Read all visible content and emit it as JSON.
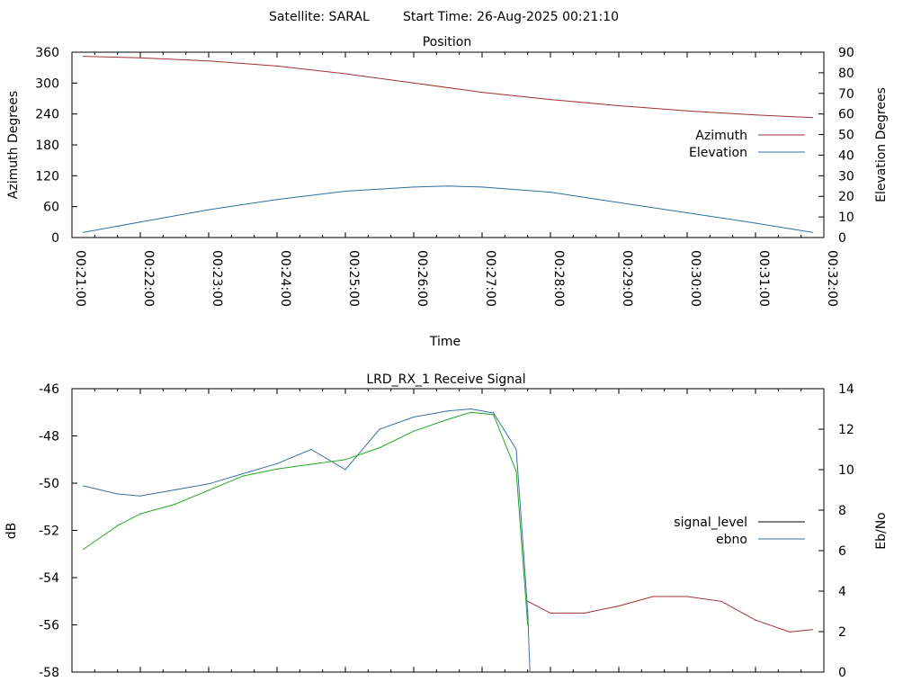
{
  "header": {
    "satellite": "Satellite: SARAL",
    "start_time": "Start Time: 26-Aug-2025 00:21:10"
  },
  "chart_data": [
    {
      "type": "line",
      "title": "Position",
      "xlabel": "Time",
      "ylabel": "Azimuth Degrees",
      "y2label": "Elevation Degrees",
      "x_ticks": [
        "00:21:00",
        "00:22:00",
        "00:23:00",
        "00:24:00",
        "00:25:00",
        "00:26:00",
        "00:27:00",
        "00:28:00",
        "00:29:00",
        "00:30:00",
        "00:31:00",
        "00:32:00"
      ],
      "xlim": [
        "00:21:00",
        "00:32:00"
      ],
      "ylim": [
        0,
        360
      ],
      "y_ticks": [
        0,
        60,
        120,
        180,
        240,
        300,
        360
      ],
      "y2lim": [
        0,
        90
      ],
      "y2_ticks": [
        0,
        10,
        20,
        30,
        40,
        50,
        60,
        70,
        80,
        90
      ],
      "legend_position": "right",
      "series": [
        {
          "name": "Azimuth",
          "axis": "y",
          "color": "#a03030",
          "x": [
            "00:21:10",
            "00:22:00",
            "00:23:00",
            "00:24:00",
            "00:25:00",
            "00:26:00",
            "00:27:00",
            "00:28:00",
            "00:29:00",
            "00:30:00",
            "00:31:00",
            "00:31:50"
          ],
          "values": [
            352,
            349,
            343,
            333,
            318,
            300,
            282,
            268,
            256,
            246,
            238,
            233
          ]
        },
        {
          "name": "Elevation",
          "axis": "y2",
          "color": "#3070a0",
          "x": [
            "00:21:10",
            "00:22:00",
            "00:23:00",
            "00:24:00",
            "00:25:00",
            "00:26:00",
            "00:26:30",
            "00:27:00",
            "00:28:00",
            "00:29:00",
            "00:30:00",
            "00:31:00",
            "00:31:50"
          ],
          "values": [
            2.5,
            7.5,
            13.5,
            18.5,
            22.5,
            24.5,
            25.0,
            24.5,
            22.0,
            17.0,
            12.0,
            7.0,
            2.5
          ]
        }
      ]
    },
    {
      "type": "line",
      "title": "LRD_RX_1 Receive Signal",
      "xlabel": "",
      "ylabel": "dB",
      "y2label": "Eb/No",
      "xlim": [
        "00:21:00",
        "00:32:00"
      ],
      "ylim": [
        -58,
        -46
      ],
      "y_ticks": [
        -58,
        -56,
        -54,
        -52,
        -50,
        -48,
        -46
      ],
      "y2lim": [
        0,
        14
      ],
      "y2_ticks": [
        0,
        2,
        4,
        6,
        8,
        10,
        12,
        14
      ],
      "legend_position": "right",
      "series": [
        {
          "name": "signal_level",
          "axis": "y",
          "color": "#000000",
          "x": [],
          "values": []
        },
        {
          "name": "ebno",
          "axis": "y2",
          "color": "#3a6ea5",
          "x": [
            "00:21:10",
            "00:21:25",
            "00:21:40",
            "00:22:00",
            "00:22:30",
            "00:23:00",
            "00:23:30",
            "00:24:00",
            "00:24:30",
            "00:25:00",
            "00:25:30",
            "00:26:00",
            "00:26:30",
            "00:26:50",
            "00:27:10",
            "00:27:30",
            "00:27:40",
            "00:27:42"
          ],
          "values": [
            9.2,
            9.0,
            8.8,
            8.7,
            9.0,
            9.3,
            9.8,
            10.3,
            11.0,
            10.0,
            12.0,
            12.6,
            12.9,
            13.0,
            12.8,
            11.0,
            3.0,
            0.0
          ]
        },
        {
          "name": "",
          "axis": "y",
          "color": "#22aa22",
          "x": [
            "00:21:10",
            "00:21:40",
            "00:22:00",
            "00:22:30",
            "00:23:00",
            "00:23:30",
            "00:24:00",
            "00:24:30",
            "00:25:00",
            "00:25:30",
            "00:26:00",
            "00:26:30",
            "00:26:50",
            "00:27:10",
            "00:27:30",
            "00:27:40"
          ],
          "values": [
            -52.8,
            -51.8,
            -51.3,
            -50.9,
            -50.3,
            -49.7,
            -49.4,
            -49.2,
            -49.0,
            -48.5,
            -47.8,
            -47.3,
            -47.0,
            -47.1,
            -49.5,
            -56.0
          ]
        },
        {
          "name": "",
          "axis": "y",
          "color": "#a03030",
          "x": [
            "00:27:40",
            "00:28:00",
            "00:28:30",
            "00:29:00",
            "00:29:30",
            "00:30:00",
            "00:30:30",
            "00:31:00",
            "00:31:30",
            "00:31:50"
          ],
          "values": [
            -55.0,
            -55.5,
            -55.5,
            -55.2,
            -54.8,
            -54.8,
            -55.0,
            -55.8,
            -56.3,
            -56.2
          ]
        }
      ]
    }
  ]
}
